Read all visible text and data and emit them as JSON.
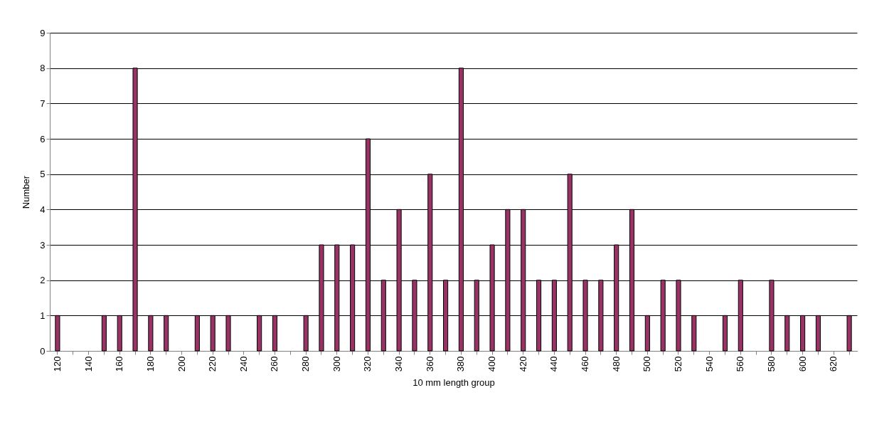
{
  "chart_data": {
    "type": "bar",
    "xlabel": "10 mm length group",
    "ylabel": "Number",
    "categories": [
      "120",
      null,
      "140",
      null,
      "160",
      null,
      "180",
      null,
      "200",
      null,
      "220",
      null,
      "240",
      null,
      "260",
      null,
      "280",
      null,
      "300",
      null,
      "320",
      null,
      "340",
      null,
      "360",
      null,
      "380",
      null,
      "400",
      null,
      "420",
      null,
      "440",
      null,
      "460",
      null,
      "480",
      null,
      "500",
      null,
      "520",
      null,
      "540",
      null,
      "560",
      null,
      "580",
      null,
      "600",
      null,
      "620",
      null
    ],
    "values": [
      1,
      0,
      0,
      1,
      1,
      8,
      1,
      1,
      0,
      1,
      1,
      1,
      0,
      1,
      1,
      0,
      1,
      3,
      3,
      3,
      6,
      2,
      4,
      2,
      5,
      2,
      8,
      2,
      3,
      4,
      4,
      2,
      2,
      5,
      2,
      2,
      3,
      4,
      1,
      2,
      2,
      1,
      0,
      1,
      2,
      0,
      2,
      1,
      1,
      1,
      0,
      1
    ],
    "color": "#993366",
    "ylim": [
      0,
      9
    ],
    "yticks": [
      0,
      1,
      2,
      3,
      4,
      5,
      6,
      7,
      8,
      9
    ],
    "grid": "y"
  }
}
